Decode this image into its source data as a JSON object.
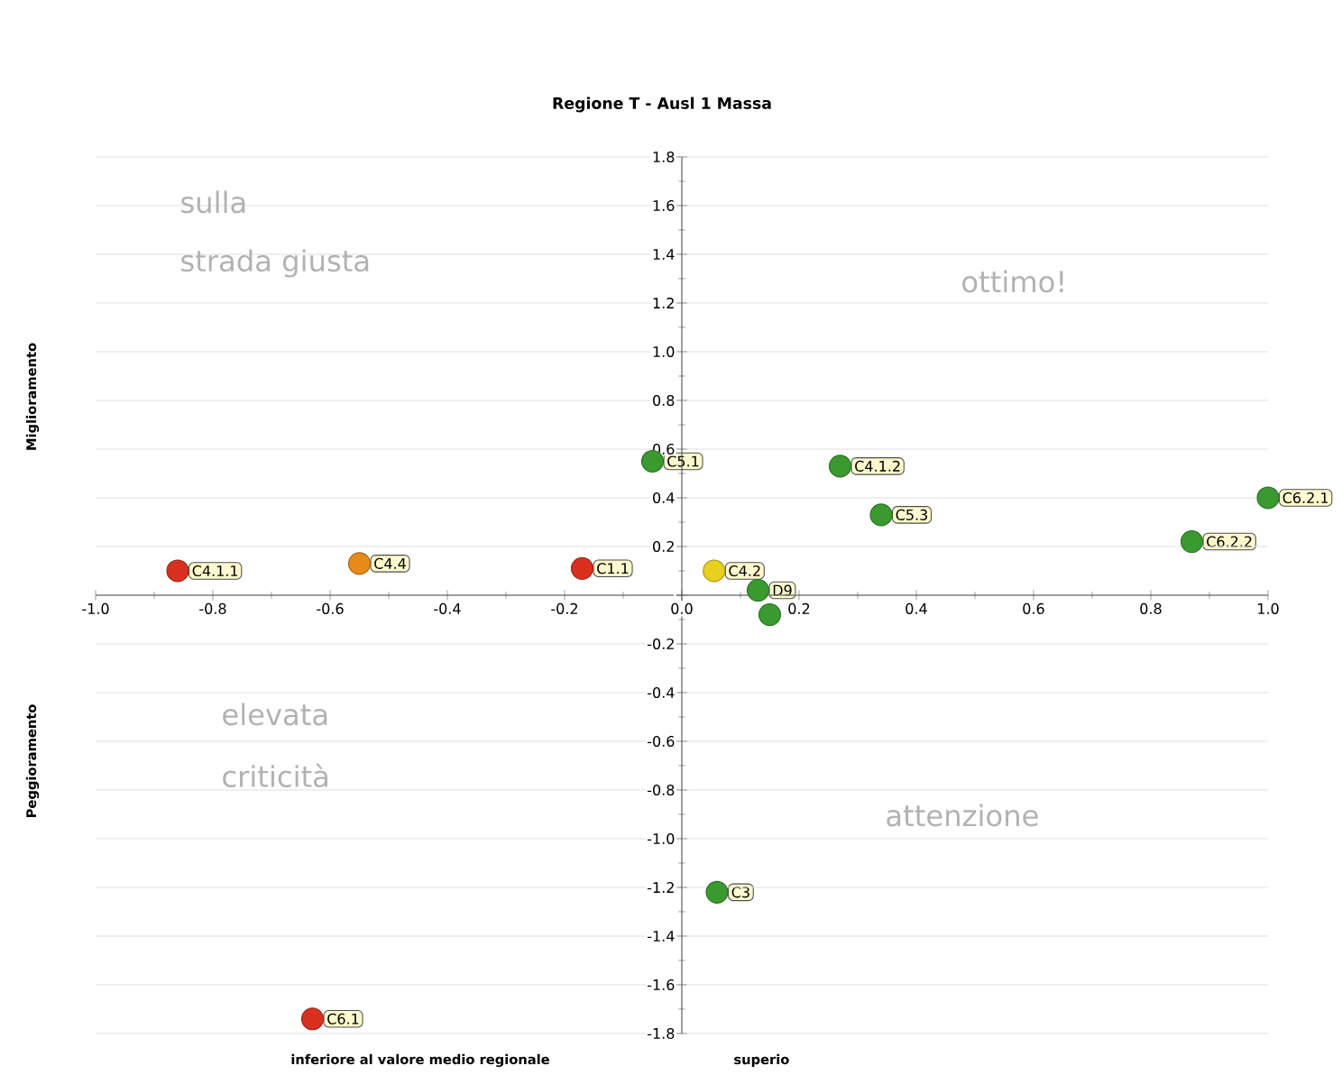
{
  "chart_data": {
    "type": "scatter",
    "title": "Regione T - Ausl 1 Massa",
    "xlabel": "inferiore al valore medio regionale",
    "annotations": [
      "sulla",
      "strada giusta",
      "ottimo!",
      "elevata",
      "criticità",
      "attenzione",
      "Miglioramento",
      "Peggioramento",
      "superio",
      {
        "text": "C4.1.1",
        "x": -0.86,
        "y": 0.1
      },
      {
        "text": "C4.4",
        "x": -0.55,
        "y": 0.13
      },
      {
        "text": "C1.1",
        "x": -0.17,
        "y": 0.11
      },
      {
        "text": "C5.1",
        "x": -0.05,
        "y": 0.55
      },
      {
        "text": "C4.1.2",
        "x": 0.27,
        "y": 0.53
      },
      {
        "text": "C5.3",
        "x": 0.34,
        "y": 0.33
      },
      {
        "text": "C6.2.1",
        "x": 1.0,
        "y": 0.4
      },
      {
        "text": "C6.2.2",
        "x": 0.87,
        "y": 0.22
      },
      {
        "text": "C4.2",
        "x": 0.055,
        "y": 0.1
      },
      {
        "text": "D9",
        "x": 0.13,
        "y": 0.02
      },
      {
        "text": "C3",
        "x": 0.06,
        "y": -1.22
      },
      {
        "text": "C6.1",
        "x": -0.63,
        "y": -1.74
      }
    ],
    "x": [
      -0.86,
      -0.55,
      -0.17,
      -0.05,
      0.27,
      0.34,
      1.0,
      0.87,
      0.055,
      0.13,
      0.15,
      0.06,
      -0.63
    ],
    "values": [
      0.1,
      0.13,
      0.11,
      0.55,
      0.53,
      0.33,
      0.4,
      0.22,
      0.1,
      0.02,
      -0.08,
      -1.22,
      -1.74
    ],
    "colors": [
      "#d93020",
      "#e88a1a",
      "#d93020",
      "#3a9a30",
      "#3a9a30",
      "#3a9a30",
      "#3a9a30",
      "#3a9a30",
      "#e8d020",
      "#3a9a30",
      "#3a9a30",
      "#3a9a30",
      "#d93020"
    ],
    "marker": "circle",
    "grid": "y",
    "xlim": [
      -1.0,
      1.0
    ],
    "ylim": [
      -1.8,
      1.8
    ],
    "xticks": [
      {
        "value": -1.0,
        "label": "-1.0"
      },
      {
        "value": -0.8,
        "label": "-0.8"
      },
      {
        "value": -0.6,
        "label": "-0.6"
      },
      {
        "value": -0.4,
        "label": "-0.4"
      },
      {
        "value": -0.2,
        "label": "-0.2"
      },
      {
        "value": 0,
        "label": "0.0"
      },
      {
        "value": 0.2,
        "label": "0.2"
      },
      {
        "value": 0.4,
        "label": "0.4"
      },
      {
        "value": 0.6,
        "label": "0.6"
      },
      {
        "value": 0.8,
        "label": "0.8"
      },
      {
        "value": 1.0,
        "label": "1.0"
      }
    ],
    "yticks": [
      {
        "value": -1.8,
        "label": "-1.8"
      },
      {
        "value": -1.6,
        "label": "-1.6"
      },
      {
        "value": -1.4,
        "label": "-1.4"
      },
      {
        "value": -1.2,
        "label": "-1.2"
      },
      {
        "value": -1.0,
        "label": "-1.0"
      },
      {
        "value": -0.8,
        "label": "-0.8"
      },
      {
        "value": -0.6,
        "label": "-0.6"
      },
      {
        "value": -0.4,
        "label": "-0.4"
      },
      {
        "value": -0.2,
        "label": "-0.2"
      },
      {
        "value": 0,
        "label": null
      },
      {
        "value": 0.2,
        "label": "0.2"
      },
      {
        "value": 0.4,
        "label": "0.4"
      },
      {
        "value": 0.6,
        "label": "0.6"
      },
      {
        "value": 0.8,
        "label": "0.8"
      },
      {
        "value": 1.0,
        "label": "1.0"
      },
      {
        "value": 1.2,
        "label": "1.2"
      },
      {
        "value": 1.4,
        "label": "1.4"
      },
      {
        "value": 1.6,
        "label": "1.6"
      },
      {
        "value": 1.8,
        "label": "1.8"
      }
    ]
  }
}
